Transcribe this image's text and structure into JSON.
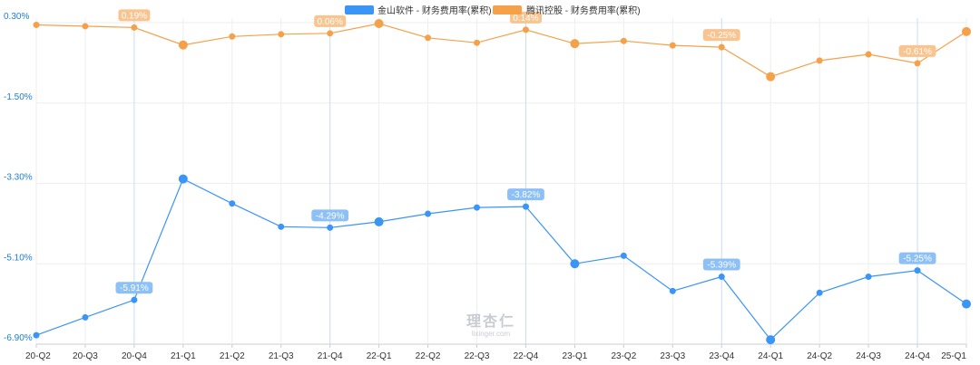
{
  "chart_data": {
    "type": "line",
    "categories": [
      "20-Q2",
      "20-Q3",
      "20-Q4",
      "21-Q1",
      "21-Q2",
      "21-Q3",
      "21-Q4",
      "22-Q1",
      "22-Q2",
      "22-Q3",
      "22-Q4",
      "23-Q1",
      "23-Q2",
      "23-Q3",
      "23-Q4",
      "24-Q1",
      "24-Q2",
      "24-Q3",
      "24-Q4",
      "25-Q1"
    ],
    "y_ticks": [
      "0.30%",
      "-1.50%",
      "-3.30%",
      "-5.10%",
      "-6.90%"
    ],
    "ylim": [
      -6.9,
      0.3
    ],
    "legend_position": "top-center",
    "grid": true,
    "series": [
      {
        "name": "金山软件 - 财务费用率(累积)",
        "color": "#3b95f5",
        "values": [
          -6.7,
          -6.3,
          -5.91,
          -3.2,
          -3.75,
          -4.27,
          -4.29,
          -4.16,
          -3.98,
          -3.84,
          -3.82,
          -5.1,
          -4.92,
          -5.71,
          -5.39,
          -6.8,
          -5.75,
          -5.39,
          -5.25,
          -6.0
        ],
        "labels": [
          {
            "index": 2,
            "text": "-5.91%"
          },
          {
            "index": 6,
            "text": "-4.29%"
          },
          {
            "index": 10,
            "text": "-3.82%"
          },
          {
            "index": 14,
            "text": "-5.39%"
          },
          {
            "index": 18,
            "text": "-5.25%"
          }
        ],
        "large_points": [
          3,
          7,
          11,
          15,
          19
        ]
      },
      {
        "name": "腾讯控股 - 财务费用率(累积)",
        "color": "#f5a14a",
        "values": [
          0.25,
          0.22,
          0.19,
          -0.2,
          -0.01,
          0.04,
          0.06,
          0.28,
          -0.04,
          -0.15,
          0.14,
          -0.17,
          -0.11,
          -0.21,
          -0.25,
          -0.91,
          -0.55,
          -0.41,
          -0.61,
          0.1
        ],
        "labels": [
          {
            "index": 2,
            "text": "0.19%"
          },
          {
            "index": 6,
            "text": "0.06%"
          },
          {
            "index": 10,
            "text": "0.14%"
          },
          {
            "index": 14,
            "text": "-0.25%"
          },
          {
            "index": 18,
            "text": "-0.61%"
          }
        ],
        "large_points": [
          3,
          7,
          11,
          15,
          19
        ]
      }
    ]
  },
  "watermark": {
    "brand": "理杏仁",
    "site": "lixinger.com"
  }
}
